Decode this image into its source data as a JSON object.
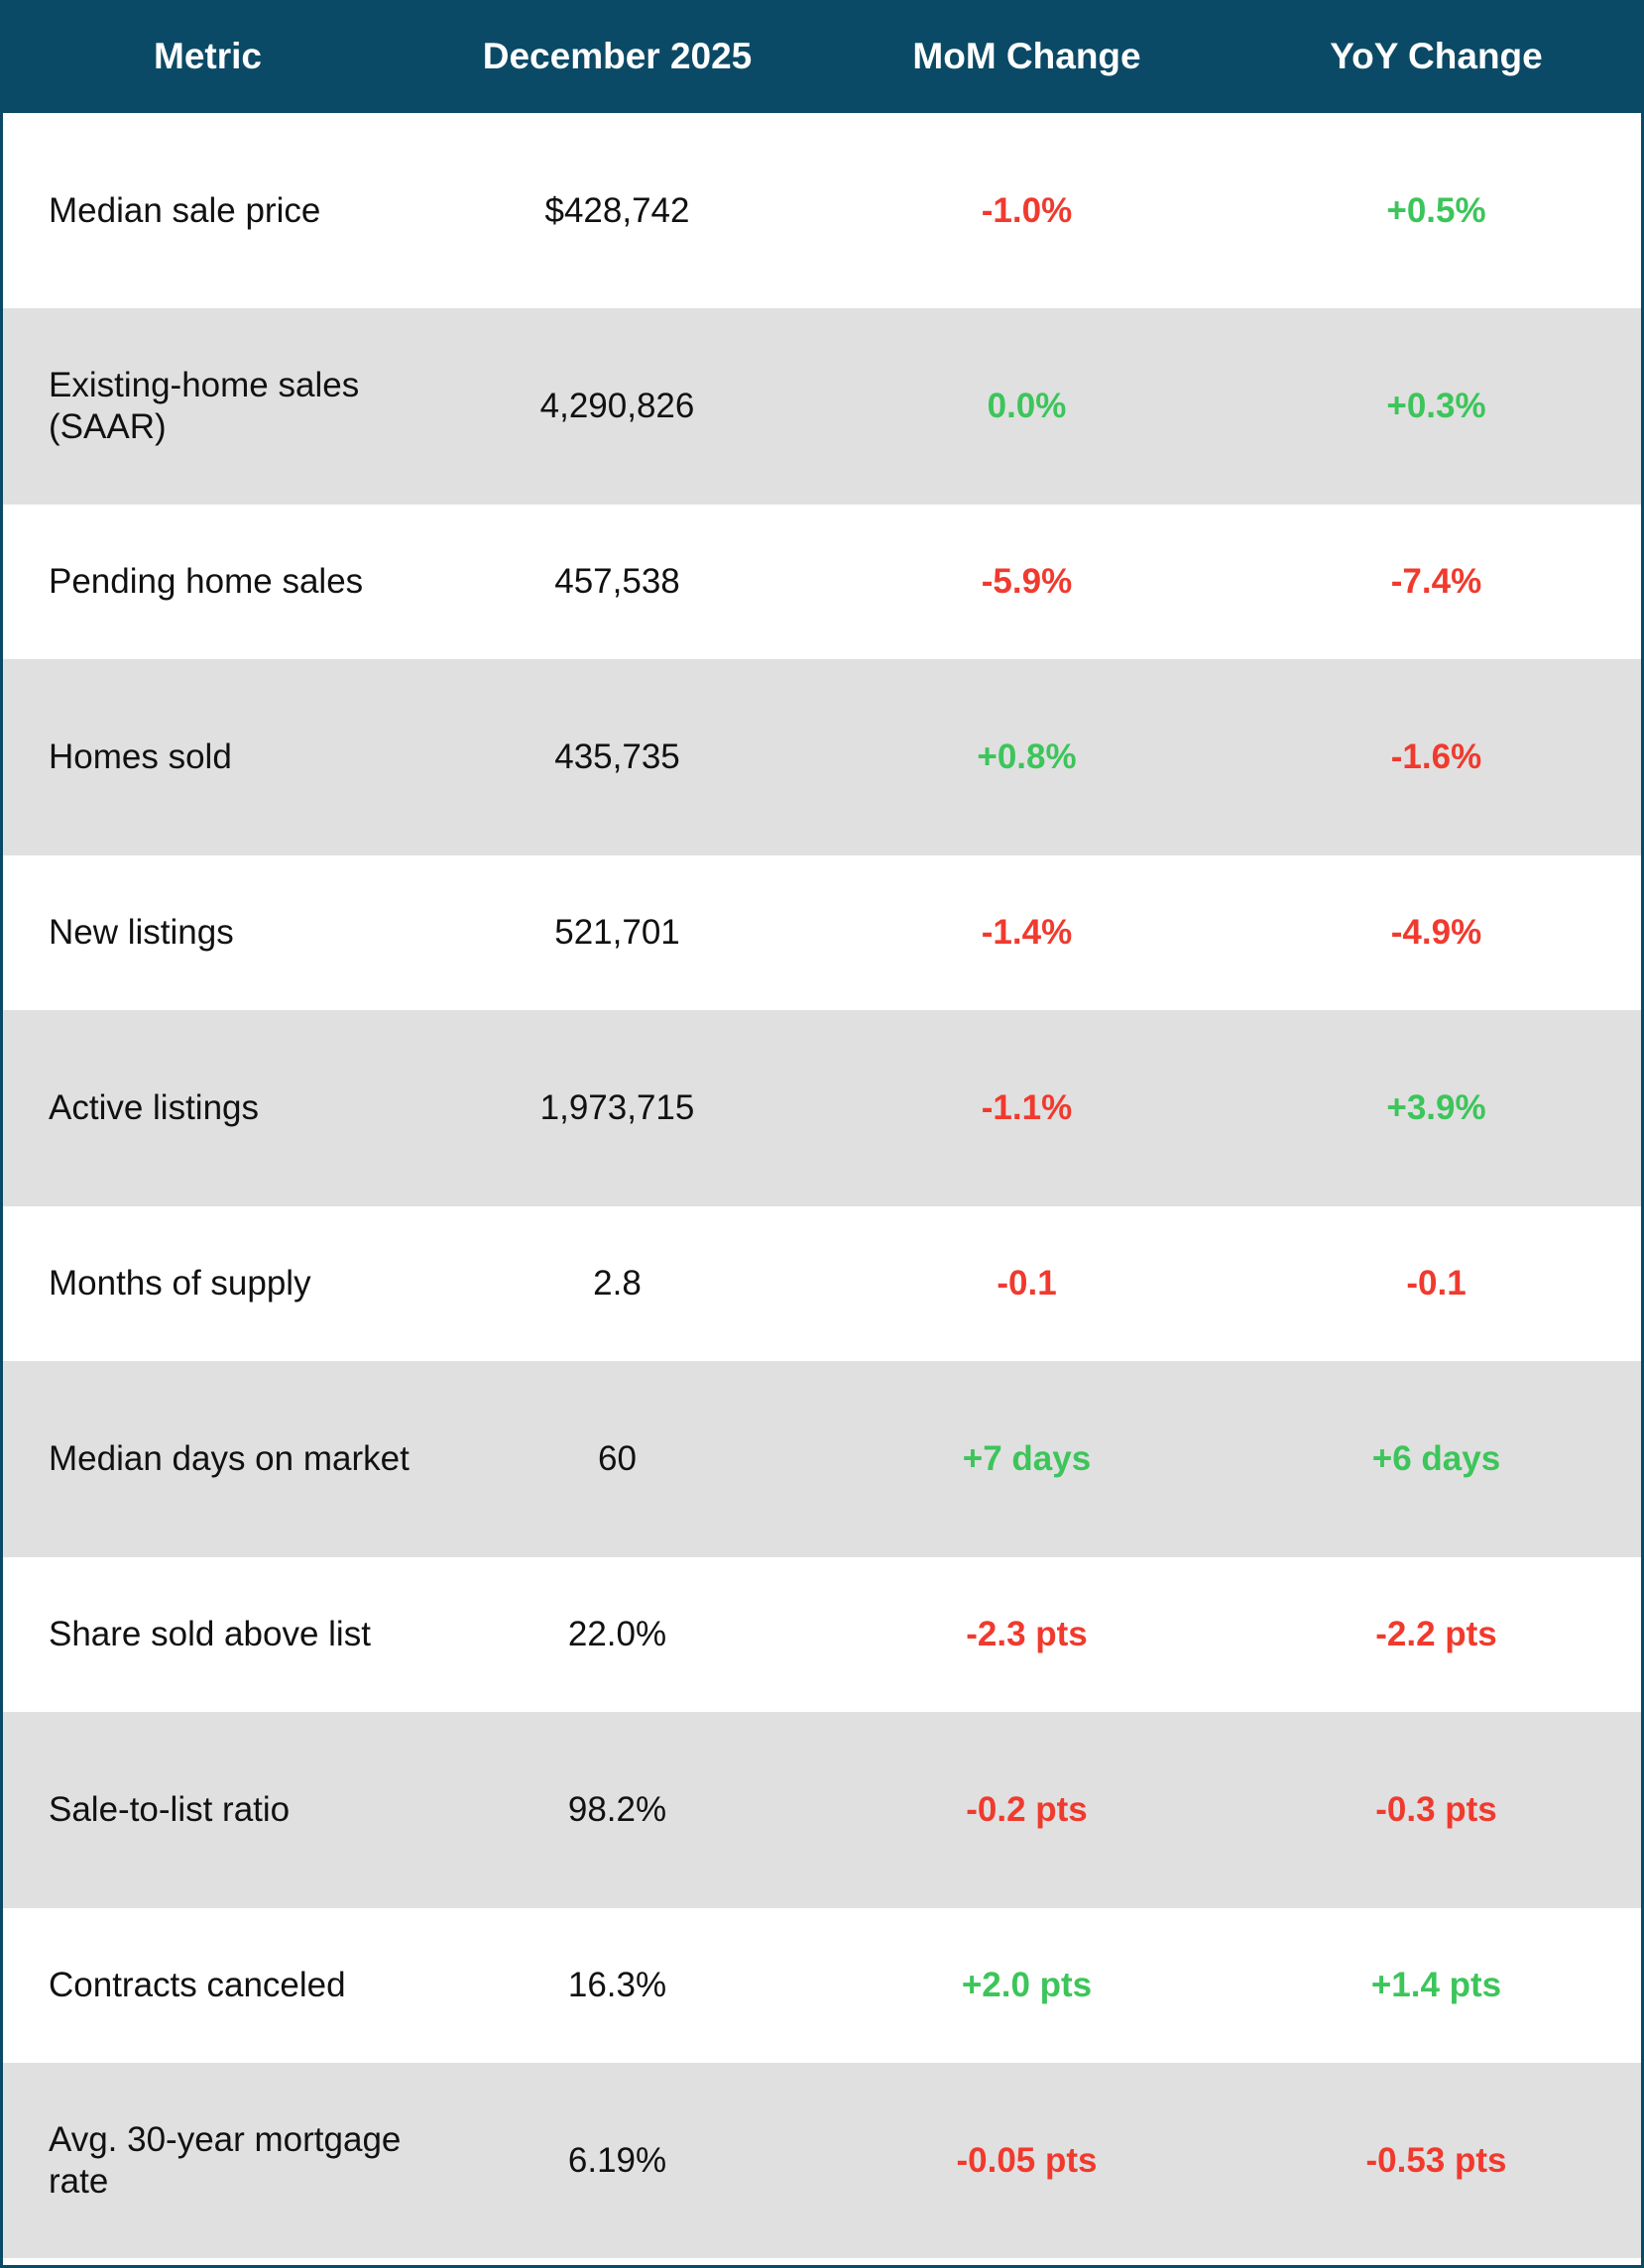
{
  "table": {
    "header": [
      "Metric",
      "December 2025",
      "MoM Change",
      "YoY Change"
    ],
    "rows": [
      [
        "Median sale price",
        "$428,742",
        "-1.0%",
        "+0.5%"
      ],
      [
        "Existing-home sales (SAAR)",
        "4,290,826",
        "0.0%",
        "+0.3%"
      ],
      [
        "Pending home sales",
        "457,538",
        "-5.9%",
        "-7.4%"
      ],
      [
        "Homes sold",
        "435,735",
        "+0.8%",
        "-1.6%"
      ],
      [
        "New listings",
        "521,701",
        "-1.4%",
        "-4.9%"
      ],
      [
        "Active listings",
        "1,973,715",
        "-1.1%",
        "+3.9%"
      ],
      [
        "Months of supply",
        "2.8",
        "-0.1",
        "-0.1"
      ],
      [
        "Median days on market",
        "60",
        "+7 days",
        "+6 days"
      ],
      [
        "Share sold above list",
        "22.0%",
        "-2.3 pts",
        "-2.2 pts"
      ],
      [
        "Sale-to-list ratio",
        "98.2%",
        "-0.2 pts",
        "-0.3 pts"
      ],
      [
        "Contracts canceled",
        "16.3%",
        "+2.0 pts",
        "+1.4 pts"
      ],
      [
        "Avg. 30-year mortgage rate",
        "6.19%",
        "-0.05 pts",
        "-0.53 pts"
      ]
    ],
    "colors": {
      "negative": "#f03a2e",
      "positive": "#3cc55a"
    }
  }
}
